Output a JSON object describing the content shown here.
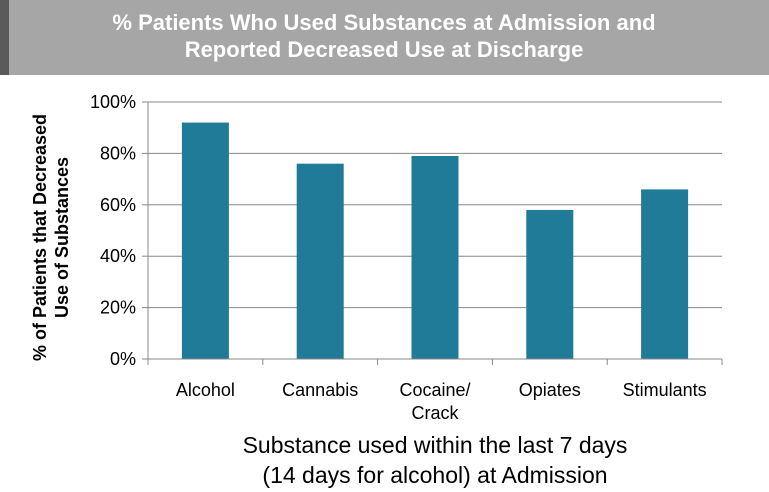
{
  "title": {
    "line1": "% Patients Who Used Substances at Admission and",
    "line2": "Reported Decreased Use at Discharge"
  },
  "colors": {
    "bar": "#1f7b98",
    "banner": "#a6a6a6",
    "banner_accent": "#5a5a5a",
    "grid": "#888888"
  },
  "chart_data": {
    "type": "bar",
    "title": "% Patients Who Used Substances at Admission and Reported Decreased Use at Discharge",
    "categories": [
      "Alcohol",
      "Cannabis",
      "Cocaine/ Crack",
      "Opiates",
      "Stimulants"
    ],
    "category_lines": [
      [
        "Alcohol"
      ],
      [
        "Cannabis"
      ],
      [
        "Cocaine/",
        "Crack"
      ],
      [
        "Opiates"
      ],
      [
        "Stimulants"
      ]
    ],
    "values": [
      92,
      76,
      79,
      58,
      66
    ],
    "ylim": [
      0,
      100
    ],
    "yticks": [
      0,
      20,
      40,
      60,
      80,
      100
    ],
    "ytick_labels": [
      "0%",
      "20%",
      "40%",
      "60%",
      "80%",
      "100%"
    ],
    "ylabel_lines": [
      "% of Patients that Decreased",
      "Use of Substances"
    ],
    "xlabel_lines": [
      "Substance used within the last 7 days",
      "(14 days for alcohol) at Admission"
    ],
    "grid": true,
    "legend": "none"
  }
}
